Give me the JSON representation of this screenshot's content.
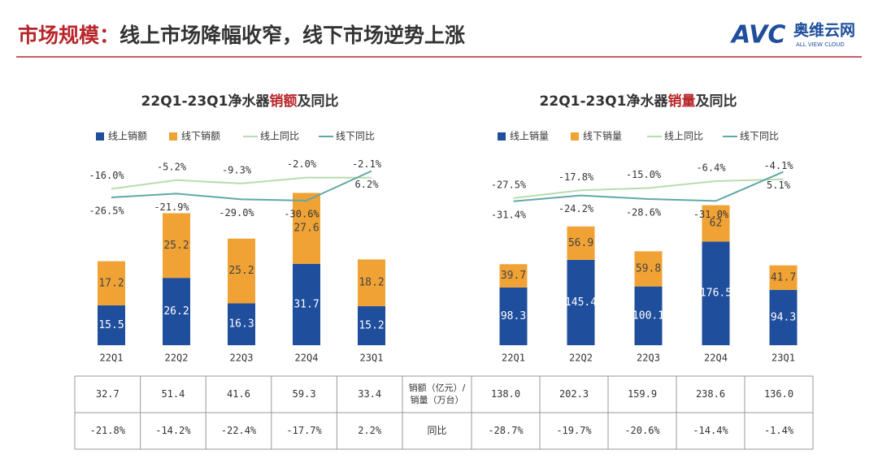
{
  "header": {
    "title": [
      "市场规模：",
      "线上市场降幅收窄，线下市场逆势上涨"
    ],
    "logo": {
      "mark": "AVC",
      "name": "奥维云网",
      "tagline": "ALL VIEW CLOUD"
    }
  },
  "chart_data": [
    {
      "type": "bar",
      "title": [
        "22Q1-23Q1净水器",
        "销额",
        "及同比"
      ],
      "categories": [
        "22Q1",
        "22Q2",
        "22Q3",
        "22Q4",
        "23Q1"
      ],
      "ylim": [
        0,
        80
      ],
      "y2lim": [
        -210,
        45
      ],
      "series": [
        {
          "name": "线上销额",
          "type": "bar",
          "color": "#1f4e9c",
          "values": [
            15.5,
            26.2,
            16.3,
            31.7,
            15.2
          ]
        },
        {
          "name": "线下销额",
          "type": "bar",
          "color": "#f0a235",
          "values": [
            17.2,
            25.2,
            25.2,
            27.6,
            18.2
          ]
        },
        {
          "name": "线上同比",
          "type": "line",
          "axis": "y2",
          "color": "#b9dcae",
          "values": [
            -16.0,
            -5.2,
            -9.3,
            -2.0,
            -2.1
          ],
          "value_labels": [
            "-16.0%",
            "-5.2%",
            "-9.3%",
            "-2.0%",
            "-2.1%"
          ]
        },
        {
          "name": "线下同比",
          "type": "line",
          "axis": "y2",
          "color": "#5fa9a6",
          "values": [
            -26.5,
            -21.9,
            -29.0,
            -30.6,
            6.2
          ],
          "value_labels": [
            "-26.5%",
            "-21.9%",
            "-29.0%",
            "-30.6%",
            "6.2%"
          ]
        }
      ]
    },
    {
      "type": "bar",
      "title": [
        "22Q1-23Q1净水器",
        "销量",
        "及同比"
      ],
      "categories": [
        "22Q1",
        "22Q2",
        "22Q3",
        "22Q4",
        "23Q1"
      ],
      "ylim": [
        0,
        350
      ],
      "y2lim": [
        -210,
        45
      ],
      "series": [
        {
          "name": "线上销量",
          "type": "bar",
          "color": "#1f4e9c",
          "values": [
            98.3,
            145.4,
            100.1,
            176.5,
            94.3
          ]
        },
        {
          "name": "线下销量",
          "type": "bar",
          "color": "#f0a235",
          "values": [
            39.7,
            56.9,
            59.8,
            62.0,
            41.7
          ]
        },
        {
          "name": "线上同比",
          "type": "line",
          "axis": "y2",
          "color": "#b9dcae",
          "values": [
            -27.5,
            -17.8,
            -15.0,
            -6.4,
            -4.1
          ],
          "value_labels": [
            "-27.5%",
            "-17.8%",
            "-15.0%",
            "-6.4%",
            "-4.1%"
          ]
        },
        {
          "name": "线下同比",
          "type": "line",
          "axis": "y2",
          "color": "#5fa9a6",
          "values": [
            -31.4,
            -24.2,
            -28.6,
            -31.0,
            5.1
          ],
          "value_labels": [
            "-31.4%",
            "-24.2%",
            "-28.6%",
            "-31.0%",
            "5.1%"
          ]
        }
      ]
    }
  ],
  "table": {
    "rows": [
      [
        "32.7",
        "51.4",
        "41.6",
        "59.3",
        "33.4",
        [
          "销额（亿元）/",
          "销量（万台）"
        ],
        "138.0",
        "202.3",
        "159.9",
        "238.6",
        "136.0"
      ],
      [
        "-21.8%",
        "-14.2%",
        "-22.4%",
        "-17.7%",
        "2.2%",
        "同比",
        "-28.7%",
        "-19.7%",
        "-20.6%",
        "-14.4%",
        "-1.4%"
      ]
    ]
  }
}
